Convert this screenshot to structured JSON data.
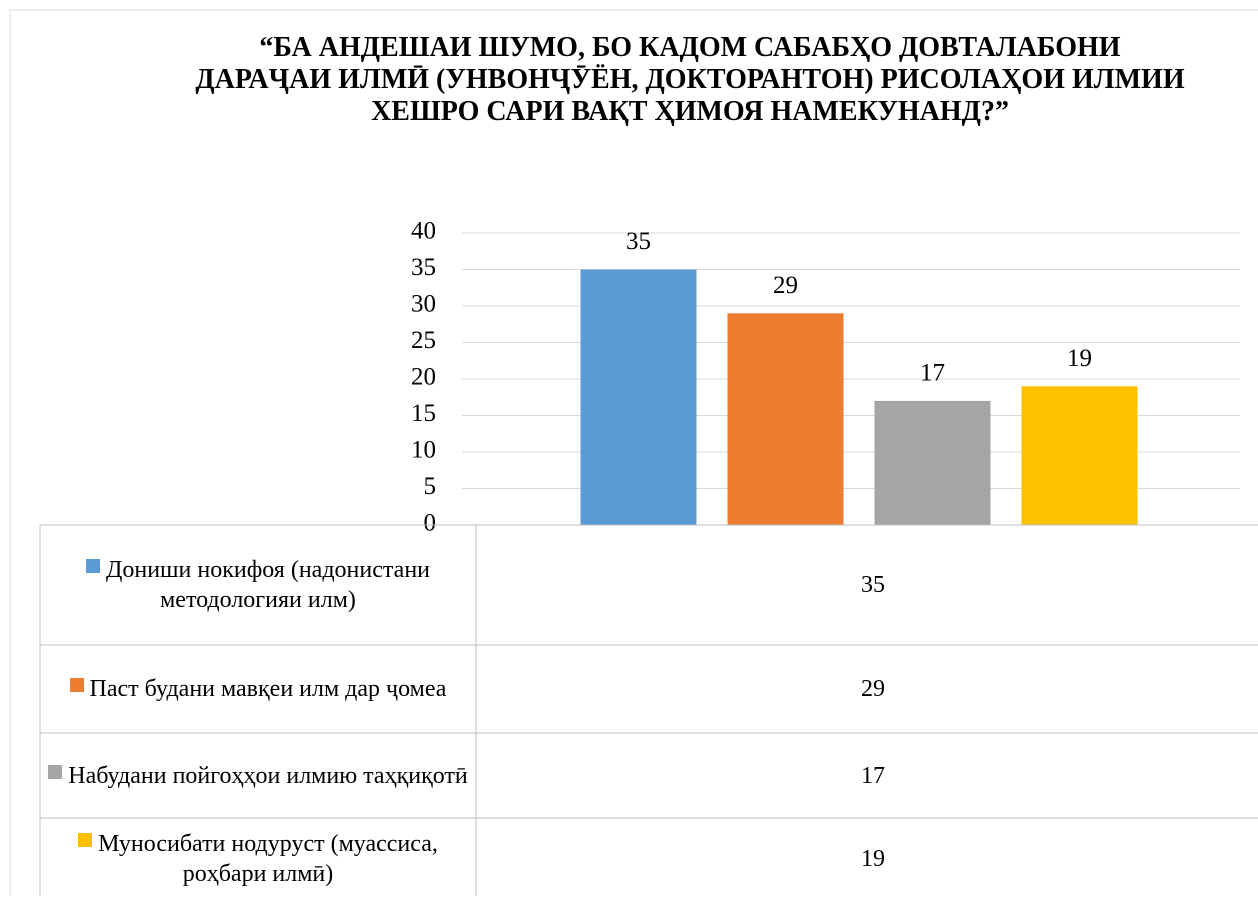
{
  "chart_data": {
    "type": "bar",
    "title": "“БА АНДЕШАИ ШУМО, БО КАДОМ САБАБҲО ДОВТАЛАБОНИ ДАРАҶАИ ИЛМӢ (УНВОНҶӮЁН, ДОКТОРАНТОН) РИСОЛАҲОИ ИЛМИИ ХЕШРО САРИ ВАҚТ ҲИМОЯ НАМЕКУНАНД?”",
    "categories": [
      null
    ],
    "series": [
      {
        "name": "Дониши нокифоя (надонистани методологияи илм)",
        "color": "#5b9bd5",
        "values": [
          35
        ]
      },
      {
        "name": "Паст будани мавқеи илм дар ҷомеа",
        "color": "#ed7d31",
        "values": [
          29
        ]
      },
      {
        "name": "Набудани пойгоҳҳои илмию таҳқиқотӣ",
        "color": "#a5a5a5",
        "values": [
          17
        ]
      },
      {
        "name": "Муносибати нодуруст (муассиса, роҳбари илмӣ)",
        "color": "#ffc000",
        "values": [
          19
        ]
      }
    ],
    "ylim": [
      0,
      40
    ],
    "yticks": [
      0,
      5,
      10,
      15,
      20,
      25,
      30,
      35,
      40
    ],
    "grid": true,
    "data_table": true
  }
}
